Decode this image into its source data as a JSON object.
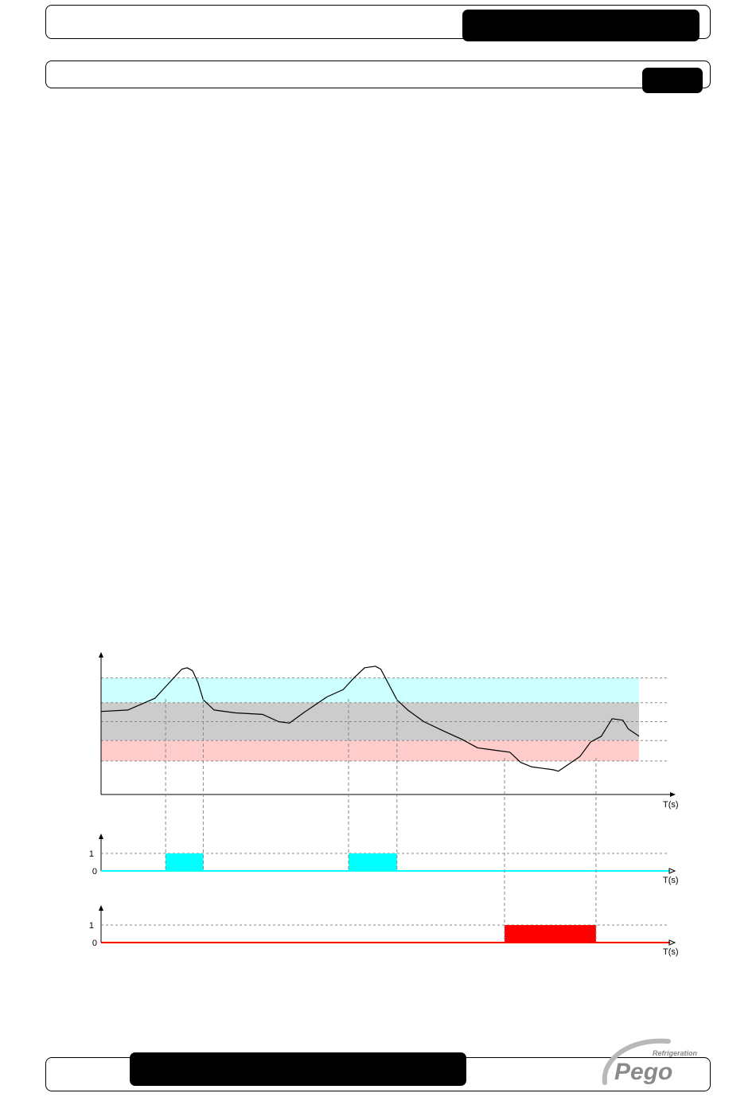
{
  "header": {
    "top_tab_text": "",
    "sub_tab_text": ""
  },
  "footer": {
    "tab_text": ""
  },
  "logo": {
    "brand": "Pego",
    "tagline": "Refrigeration"
  },
  "chart_data": [
    {
      "type": "line",
      "title": "",
      "xlabel": "T(s)",
      "ylabel": "",
      "xlim": [
        0,
        100
      ],
      "ylim": [
        0,
        100
      ],
      "bands": [
        {
          "from": 63,
          "to": 80,
          "color": "#ccffff"
        },
        {
          "from": 37,
          "to": 63,
          "color": "#cccccc"
        },
        {
          "from": 23,
          "to": 37,
          "color": "#ffcccc"
        }
      ],
      "series": [
        {
          "values": [
            [
              0,
              57
            ],
            [
              5,
              58
            ],
            [
              10,
              66
            ],
            [
              13,
              78
            ],
            [
              15,
              86
            ],
            [
              16,
              87
            ],
            [
              17,
              85
            ],
            [
              18,
              77
            ],
            [
              19,
              65
            ],
            [
              21,
              58
            ],
            [
              25,
              56
            ],
            [
              30,
              55
            ],
            [
              33,
              50
            ],
            [
              35,
              49
            ],
            [
              38,
              57
            ],
            [
              42,
              67
            ],
            [
              45,
              72
            ],
            [
              47,
              80
            ],
            [
              49,
              87
            ],
            [
              51,
              88
            ],
            [
              52,
              86
            ],
            [
              54,
              72
            ],
            [
              55,
              65
            ],
            [
              57,
              58
            ],
            [
              60,
              50
            ],
            [
              64,
              43
            ],
            [
              67,
              38
            ],
            [
              70,
              32
            ],
            [
              72,
              31
            ],
            [
              74,
              30
            ],
            [
              76,
              29
            ],
            [
              78,
              22
            ],
            [
              80,
              19
            ],
            [
              82,
              18
            ],
            [
              84,
              17
            ],
            [
              85,
              16
            ],
            [
              87,
              21
            ],
            [
              89,
              26
            ],
            [
              91,
              36
            ],
            [
              93,
              40
            ],
            [
              95,
              52
            ],
            [
              97,
              51
            ],
            [
              98,
              45
            ],
            [
              100,
              40
            ]
          ]
        }
      ]
    },
    {
      "type": "line",
      "title": "",
      "xlabel": "T(s)",
      "ylabel": "",
      "yticks": [
        "0",
        "1"
      ],
      "color": "#00ffff",
      "pulses": [
        [
          12,
          19
        ],
        [
          46,
          55
        ]
      ]
    },
    {
      "type": "line",
      "title": "",
      "xlabel": "T(s)",
      "ylabel": "",
      "yticks": [
        "0",
        "1"
      ],
      "color": "#ff0000",
      "pulses": [
        [
          75,
          92
        ]
      ]
    }
  ]
}
